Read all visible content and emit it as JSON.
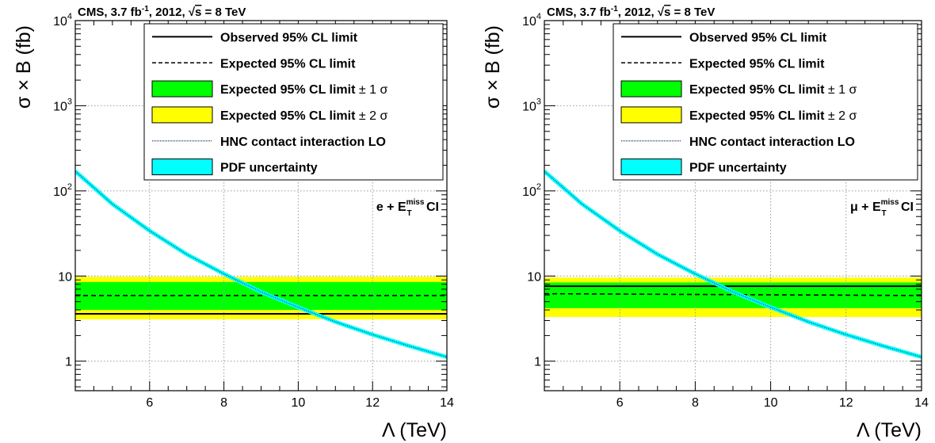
{
  "chart_data": [
    {
      "type": "line",
      "header": {
        "experiment": "CMS,  3.7 fb",
        "lumi_exp": "-1",
        "year": ",  2012,  ",
        "sqrt": "s",
        "energy": " = 8 TeV"
      },
      "channel_label": {
        "prefix": "e + E",
        "sup": "miss",
        "sub": "T",
        "suffix": " CI"
      },
      "xlabel": {
        "symbol": "Λ",
        "text": " (TeV)"
      },
      "ylabel": {
        "symbol": "σ",
        "text": "× B (fb)"
      },
      "xlim": [
        4.0,
        14.0
      ],
      "ylim": [
        0.45,
        10000
      ],
      "yscale": "log",
      "grid": true,
      "xticks": [
        "6",
        "8",
        "10",
        "12",
        "14"
      ],
      "yticks": [
        {
          "label": "1"
        },
        {
          "label": "10"
        },
        {
          "label": "10",
          "exp": "2"
        },
        {
          "label": "10",
          "exp": "3"
        },
        {
          "label": "10",
          "exp": "4"
        }
      ],
      "legend": {
        "placement": "top-right",
        "entries": [
          {
            "style": "solid",
            "label": "Observed 95% CL limit"
          },
          {
            "style": "dashed",
            "label": "Expected 95% CL limit"
          },
          {
            "style": "green-band",
            "label": "Expected 95% CL limit",
            "suffix": "± 1",
            "greek": "σ"
          },
          {
            "style": "yellow-band",
            "label": "Expected 95% CL limit",
            "suffix": "± 2",
            "greek": "σ"
          },
          {
            "style": "dotted",
            "label": "HNC contact interaction LO"
          },
          {
            "style": "cyan-band",
            "label": "PDF uncertainty"
          }
        ]
      },
      "colors": {
        "green": "#00ff00",
        "yellow": "#ffff00",
        "cyan": "#00ffff",
        "grid": "#aaaaaa"
      },
      "observed": 3.6,
      "expected": 5.9,
      "band_1sigma": [
        4.0,
        8.5
      ],
      "band_2sigma": [
        3.1,
        9.8
      ],
      "theory": {
        "lambda": [
          4.0,
          5.0,
          6.0,
          7.0,
          8.0,
          9.0,
          10.0,
          11.0,
          12.0,
          13.0,
          14.0
        ],
        "xsec": [
          170,
          70,
          34,
          18,
          10.6,
          6.5,
          4.3,
          2.9,
          2.05,
          1.5,
          1.12
        ]
      }
    },
    {
      "type": "line",
      "header": {
        "experiment": "CMS,  3.7 fb",
        "lumi_exp": "-1",
        "year": ",  2012,  ",
        "sqrt": "s",
        "energy": " = 8 TeV"
      },
      "channel_label": {
        "prefix": "μ + E",
        "sup": "miss",
        "sub": "T",
        "suffix": " CI"
      },
      "xlabel": {
        "symbol": "Λ",
        "text": " (TeV)"
      },
      "ylabel": {
        "symbol": "σ",
        "text": "× B (fb)"
      },
      "xlim": [
        4.0,
        14.0
      ],
      "ylim": [
        0.45,
        10000
      ],
      "yscale": "log",
      "grid": true,
      "xticks": [
        "6",
        "8",
        "10",
        "12",
        "14"
      ],
      "yticks": [
        {
          "label": "1"
        },
        {
          "label": "10"
        },
        {
          "label": "10",
          "exp": "2"
        },
        {
          "label": "10",
          "exp": "3"
        },
        {
          "label": "10",
          "exp": "4"
        }
      ],
      "legend": {
        "placement": "top-right",
        "entries": [
          {
            "style": "solid",
            "label": "Observed 95% CL limit"
          },
          {
            "style": "dashed",
            "label": "Expected 95% CL limit"
          },
          {
            "style": "green-band",
            "label": "Expected 95% CL limit",
            "suffix": "± 1",
            "greek": "σ"
          },
          {
            "style": "yellow-band",
            "label": "Expected 95% CL limit",
            "suffix": "± 2",
            "greek": "σ"
          },
          {
            "style": "dotted",
            "label": "HNC contact interaction LO"
          },
          {
            "style": "cyan-band",
            "label": "PDF uncertainty"
          }
        ]
      },
      "colors": {
        "green": "#00ff00",
        "yellow": "#ffff00",
        "cyan": "#00ffff",
        "grid": "#aaaaaa"
      },
      "observed": 7.6,
      "expected": [
        6.2,
        5.9
      ],
      "band_1sigma": [
        4.2,
        8.4
      ],
      "band_2sigma": [
        3.3,
        9.6
      ],
      "theory": {
        "lambda": [
          4.0,
          5.0,
          6.0,
          7.0,
          8.0,
          9.0,
          10.0,
          11.0,
          12.0,
          13.0,
          14.0
        ],
        "xsec": [
          170,
          70,
          34,
          18,
          10.6,
          6.5,
          4.3,
          2.9,
          2.05,
          1.5,
          1.12
        ]
      }
    }
  ]
}
